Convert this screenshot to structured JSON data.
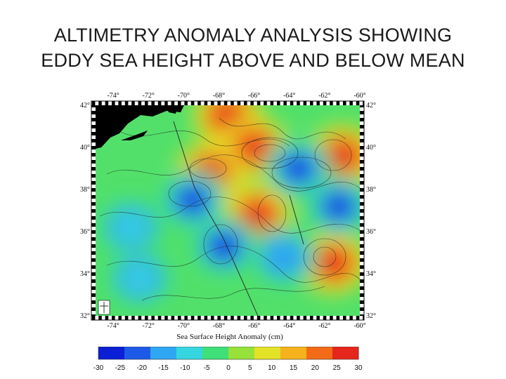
{
  "title": {
    "line1": "ALTIMETRY ANOMALY ANALYSIS SHOWING",
    "line2": "EDDY SEA HEIGHT ABOVE AND BELOW MEAN"
  },
  "map": {
    "lon_ticks": [
      "-74°",
      "-72°",
      "-70°",
      "-68°",
      "-66°",
      "-64°",
      "-62°",
      "-60°"
    ],
    "lat_ticks": [
      "42°",
      "40°",
      "38°",
      "36°",
      "34°",
      "32°"
    ],
    "lon_range": [
      -75,
      -60
    ],
    "lat_range": [
      32,
      42
    ],
    "land_color": "#000000",
    "eddies": [
      {
        "kind": "warm",
        "lon": -67.5,
        "lat": 41.5,
        "value": 25
      },
      {
        "kind": "warm",
        "lon": -66.0,
        "lat": 40.0,
        "value": 30
      },
      {
        "kind": "warm",
        "lon": -68.5,
        "lat": 38.8,
        "value": 25
      },
      {
        "kind": "warm",
        "lon": -61.0,
        "lat": 39.6,
        "value": 25
      },
      {
        "kind": "warm",
        "lon": -65.8,
        "lat": 36.8,
        "value": 25
      },
      {
        "kind": "warm",
        "lon": -61.5,
        "lat": 34.5,
        "value": 30
      },
      {
        "kind": "cold",
        "lon": -63.5,
        "lat": 39.0,
        "value": -30
      },
      {
        "kind": "cold",
        "lon": -69.5,
        "lat": 37.5,
        "value": -25
      },
      {
        "kind": "cold",
        "lon": -67.7,
        "lat": 35.3,
        "value": -25
      },
      {
        "kind": "cold",
        "lon": -61.2,
        "lat": 37.2,
        "value": -25
      },
      {
        "kind": "cold",
        "lon": -64.3,
        "lat": 34.8,
        "value": -15
      },
      {
        "kind": "cold",
        "lon": -73.0,
        "lat": 36.2,
        "value": -10
      },
      {
        "kind": "cold",
        "lon": -72.5,
        "lat": 33.8,
        "value": -10
      }
    ]
  },
  "colorbar": {
    "label": "Sea Surface Height Anomaly (cm)",
    "ticks": [
      "-30",
      "-25",
      "-20",
      "-15",
      "-10",
      "-5",
      "0",
      "5",
      "10",
      "15",
      "20",
      "25",
      "30"
    ],
    "range": [
      -30,
      30
    ],
    "colors": [
      "#0a1fd6",
      "#1e5ae8",
      "#2fa6f2",
      "#35d6e0",
      "#3fe07a",
      "#96e23a",
      "#e4e227",
      "#f5b21c",
      "#f36b17",
      "#e6261c"
    ]
  }
}
